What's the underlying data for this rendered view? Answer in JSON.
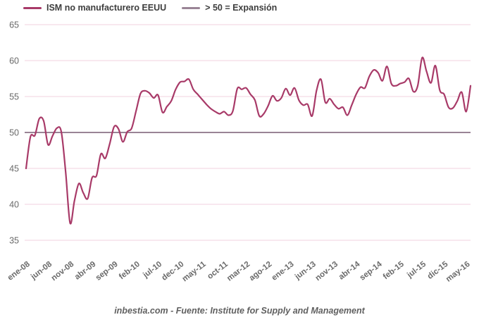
{
  "legend": [
    {
      "label": "ISM no manufacturero EEUU",
      "color": "#A83A68"
    },
    {
      "label": "> 50 = Expansión",
      "color": "#9A8496"
    }
  ],
  "footer": {
    "source_text": "inbestia.com - Fuente: Institute for Supply and Management"
  },
  "chart_data": {
    "type": "line",
    "title": "",
    "xlabel": "",
    "ylabel": "",
    "x_start": "ene-08",
    "x_end": "jun-16",
    "frequency": "monthly",
    "x_tick_labels": [
      "ene-08",
      "jun-08",
      "nov-08",
      "abr-09",
      "sep-09",
      "feb-10",
      "jul-10",
      "dec-10",
      "may-11",
      "oct-11",
      "mar-12",
      "ago-12",
      "ene-13",
      "jun-13",
      "nov-13",
      "abr-14",
      "sep-14",
      "feb-15",
      "jul-15",
      "dic-15",
      "may-16"
    ],
    "x_tick_interval_months": 5,
    "y_ticks": [
      65,
      60,
      55,
      50,
      45,
      40,
      35
    ],
    "ylim": [
      35,
      65
    ],
    "grid": "horizontal",
    "legend_position": "top-left",
    "series": [
      {
        "name": "ISM no manufacturero EEUU",
        "color": "#A83A68",
        "values": [
          45.0,
          49.4,
          49.6,
          51.9,
          51.6,
          48.3,
          49.5,
          50.6,
          50.1,
          44.5,
          37.4,
          40.5,
          42.9,
          41.6,
          40.8,
          43.7,
          44.0,
          47.0,
          46.4,
          48.4,
          50.8,
          50.5,
          48.7,
          50.1,
          50.6,
          53.0,
          55.4,
          55.8,
          55.5,
          54.8,
          55.2,
          52.8,
          53.6,
          54.4,
          56.0,
          57.0,
          57.1,
          57.4,
          56.0,
          55.3,
          54.6,
          53.9,
          53.3,
          52.9,
          52.6,
          52.9,
          52.4,
          53.0,
          56.1,
          56.0,
          56.2,
          55.3,
          54.5,
          52.3,
          52.6,
          53.7,
          55.1,
          54.4,
          54.8,
          56.1,
          55.2,
          56.2,
          54.5,
          53.8,
          53.9,
          52.3,
          55.8,
          57.4,
          54.2,
          54.7,
          53.9,
          53.3,
          53.5,
          52.4,
          53.8,
          55.3,
          56.3,
          56.2,
          57.8,
          58.7,
          58.3,
          57.2,
          59.2,
          56.8,
          56.5,
          56.8,
          57.0,
          57.5,
          55.7,
          56.5,
          60.4,
          58.5,
          56.9,
          59.3,
          55.9,
          55.3,
          53.5,
          53.4,
          54.4,
          55.6,
          52.9,
          56.5
        ]
      }
    ],
    "threshold": {
      "value": 50,
      "label": "> 50 = Expansión",
      "color": "#9A8496"
    },
    "colors": {
      "grid": "#F8E8EF",
      "axis_text": "#6A6A6A",
      "background": "#FFFFFF"
    }
  }
}
